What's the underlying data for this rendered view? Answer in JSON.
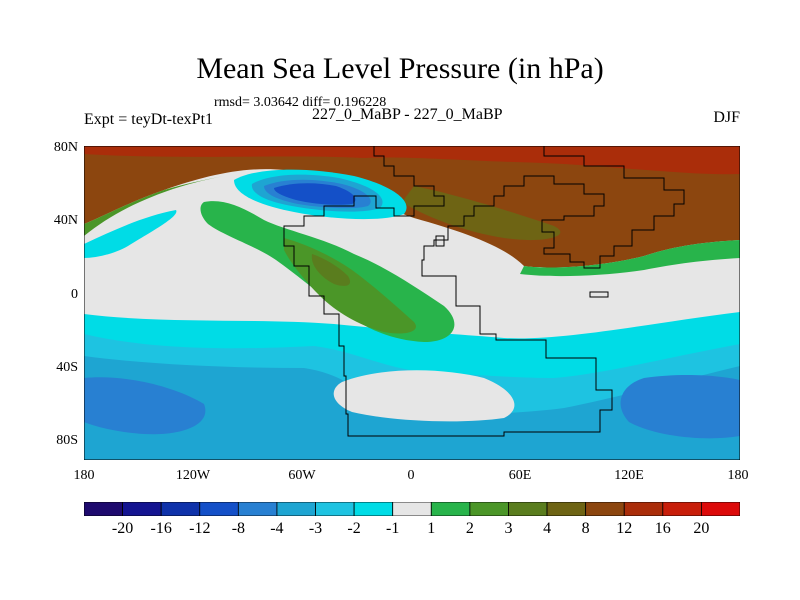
{
  "title": "Mean Sea Level Pressure (in hPa)",
  "stats_line": "rmsd= 3.03642 diff= 0.196228",
  "experiment_label": "Expt = teyDt-texPt1",
  "case_label": "227_0_MaBP - 227_0_MaBP",
  "season_label": "DJF",
  "chart_data": {
    "type": "heatmap",
    "title": "Mean Sea Level Pressure (in hPa)",
    "x_range": [
      -180,
      180
    ],
    "y_range": [
      -90,
      90
    ],
    "x_tick_labels": [
      "180",
      "120W",
      "60W",
      "0",
      "60E",
      "120E",
      "180"
    ],
    "y_tick_labels": [
      "80N",
      "40N",
      "0",
      "40S",
      "80S"
    ],
    "colorbar": {
      "labels": [
        "-20",
        "-16",
        "-12",
        "-8",
        "-4",
        "-3",
        "-2",
        "-1",
        "1",
        "2",
        "3",
        "4",
        "8",
        "12",
        "16",
        "20"
      ],
      "colors": [
        "#1e0a6e",
        "#141491",
        "#0f32aa",
        "#1450c8",
        "#2880d2",
        "#1ea5d2",
        "#1ec3e1",
        "#00dce6",
        "#e6e6e6",
        "#28b44b",
        "#4b9628",
        "#5a7d1e",
        "#6e6414",
        "#8c460f",
        "#aa2d0a",
        "#c81e0a",
        "#dc0a0a"
      ]
    }
  }
}
